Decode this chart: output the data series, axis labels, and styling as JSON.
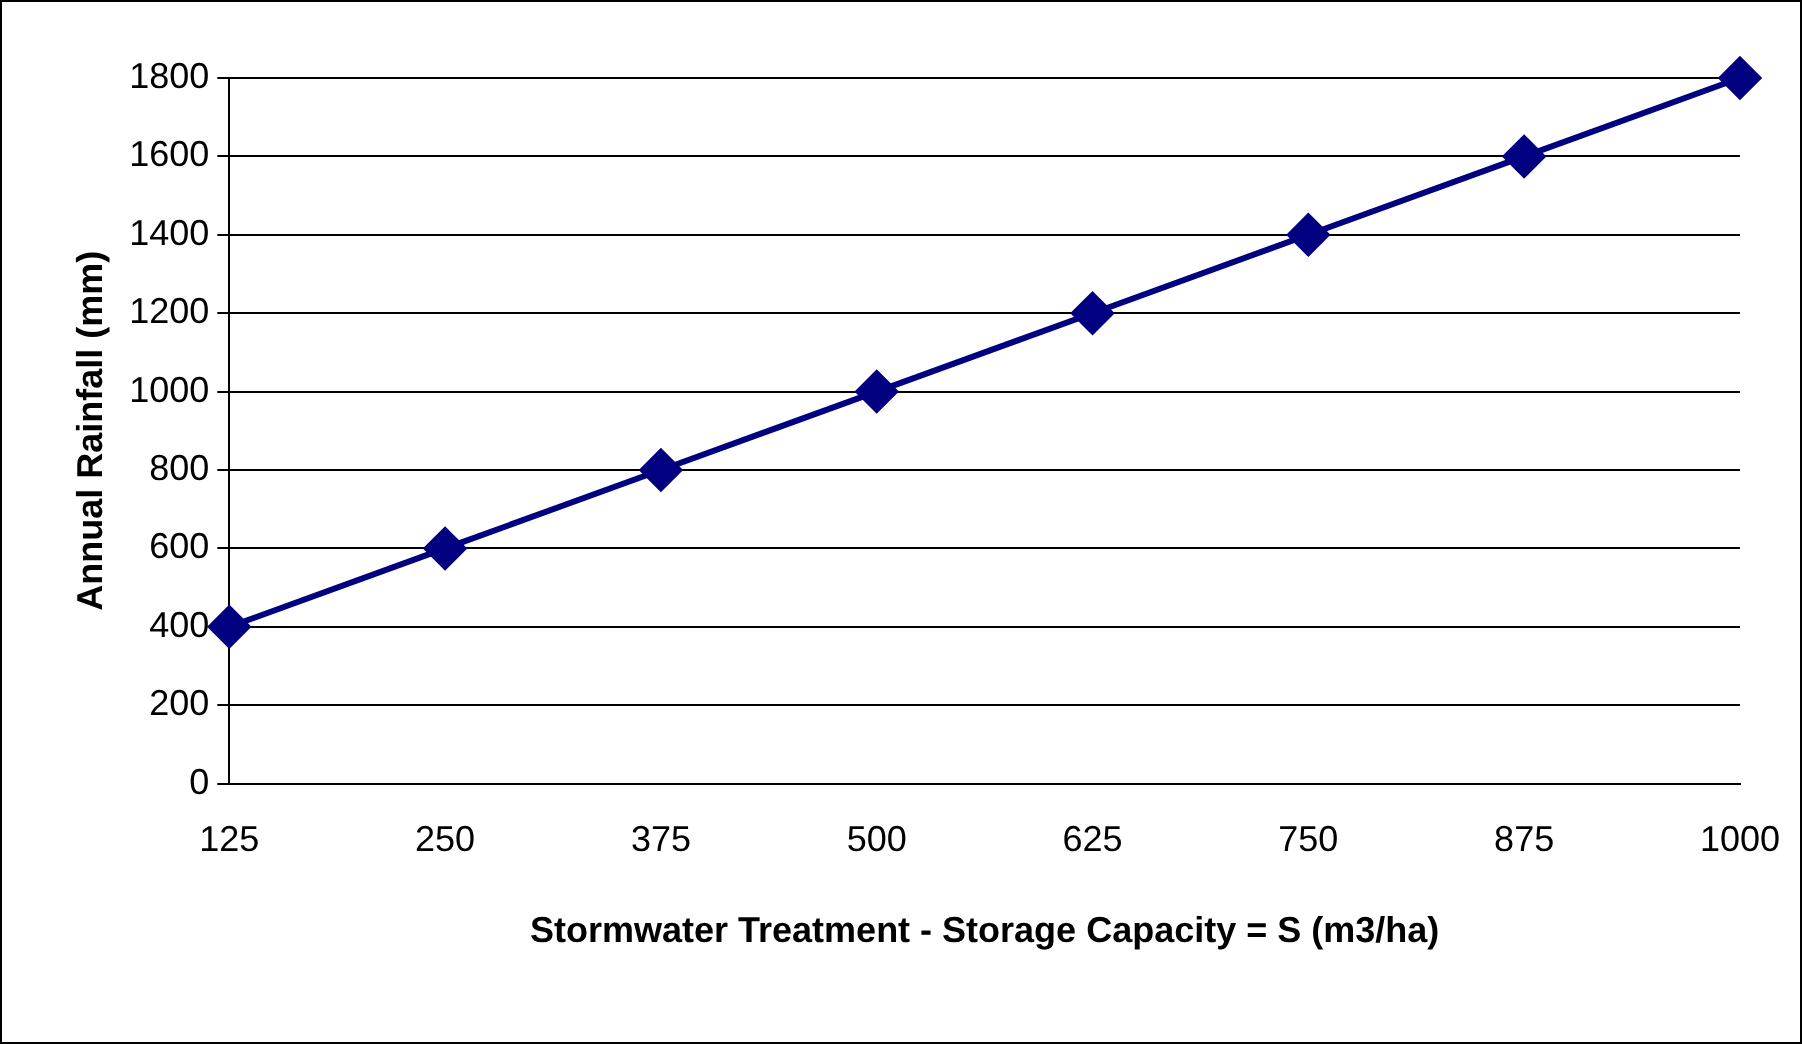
{
  "chart_data": {
    "type": "line",
    "xlabel": "Stormwater Treatment - Storage Capacity = S (m3/ha)",
    "ylabel": "Annual Rainfall (mm)",
    "categories": [
      "125",
      "250",
      "375",
      "500",
      "625",
      "750",
      "875",
      "1000"
    ],
    "series": [
      {
        "color": "#000080",
        "values": [
          400,
          600,
          800,
          1000,
          1200,
          1400,
          1600,
          1800
        ]
      }
    ],
    "ylim": [
      0,
      1800
    ],
    "yticks": [
      0,
      200,
      400,
      600,
      800,
      1000,
      1200,
      1400,
      1600,
      1800
    ],
    "grid": "y",
    "marker": "diamond",
    "line_style": "solid",
    "legend": false
  }
}
